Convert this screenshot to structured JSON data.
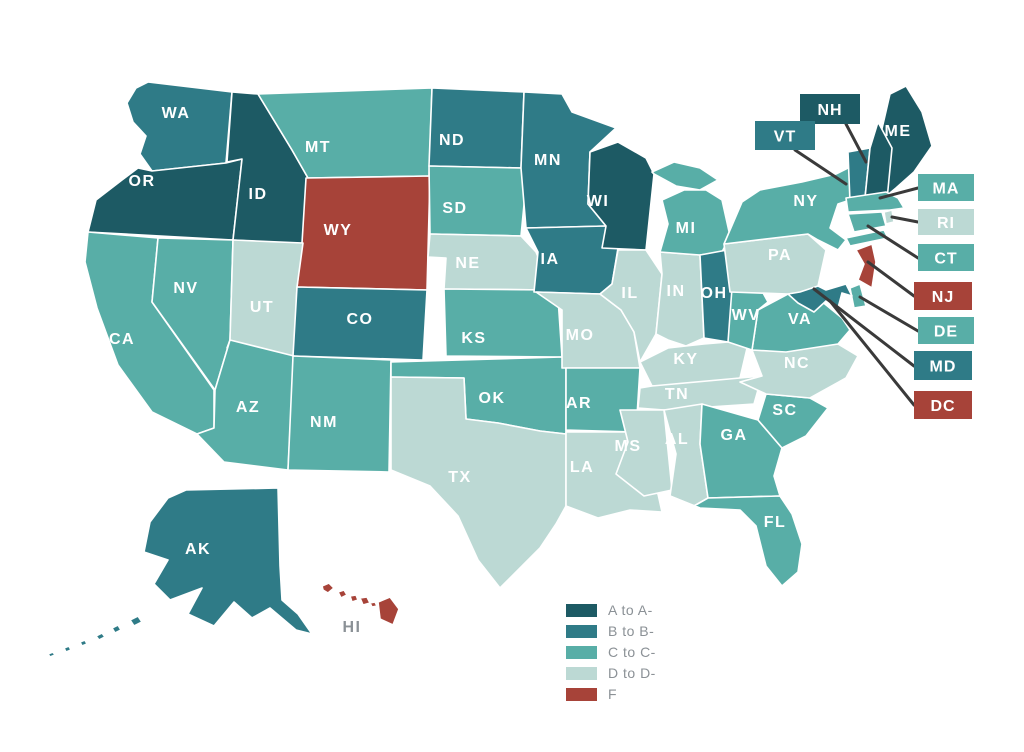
{
  "colors": {
    "A": "#1d5a64",
    "B": "#2f7b87",
    "C": "#58aea7",
    "D": "#bcd9d4",
    "F": "#a74339",
    "leader_line": "#3a3a3a",
    "state_label": "#ffffff",
    "outside_label": "#8b9196"
  },
  "legend": {
    "items": [
      {
        "grade": "A",
        "label": "A to A-"
      },
      {
        "grade": "B",
        "label": "B to B-"
      },
      {
        "grade": "C",
        "label": "C to C-"
      },
      {
        "grade": "D",
        "label": "D to D-"
      },
      {
        "grade": "F",
        "label": "F"
      }
    ]
  },
  "map": {
    "states": [
      {
        "abbr": "WA",
        "label": "WA",
        "grade": "B"
      },
      {
        "abbr": "OR",
        "label": "OR",
        "grade": "A"
      },
      {
        "abbr": "CA",
        "label": "CA",
        "grade": "C"
      },
      {
        "abbr": "NV",
        "label": "NV",
        "grade": "C"
      },
      {
        "abbr": "ID",
        "label": "ID",
        "grade": "A"
      },
      {
        "abbr": "MT",
        "label": "MT",
        "grade": "C"
      },
      {
        "abbr": "WY",
        "label": "WY",
        "grade": "F"
      },
      {
        "abbr": "UT",
        "label": "UT",
        "grade": "D"
      },
      {
        "abbr": "CO",
        "label": "CO",
        "grade": "B"
      },
      {
        "abbr": "AZ",
        "label": "AZ",
        "grade": "C"
      },
      {
        "abbr": "NM",
        "label": "NM",
        "grade": "C"
      },
      {
        "abbr": "ND",
        "label": "ND",
        "grade": "B"
      },
      {
        "abbr": "SD",
        "label": "SD",
        "grade": "C"
      },
      {
        "abbr": "NE",
        "label": "NE",
        "grade": "D"
      },
      {
        "abbr": "KS",
        "label": "KS",
        "grade": "C"
      },
      {
        "abbr": "OK",
        "label": "OK",
        "grade": "C"
      },
      {
        "abbr": "TX",
        "label": "TX",
        "grade": "D"
      },
      {
        "abbr": "MN",
        "label": "MN",
        "grade": "B"
      },
      {
        "abbr": "IA",
        "label": "IA",
        "grade": "B"
      },
      {
        "abbr": "MO",
        "label": "MO",
        "grade": "D"
      },
      {
        "abbr": "AR",
        "label": "AR",
        "grade": "C"
      },
      {
        "abbr": "LA",
        "label": "LA",
        "grade": "D"
      },
      {
        "abbr": "WI",
        "label": "WI",
        "grade": "A"
      },
      {
        "abbr": "IL",
        "label": "IL",
        "grade": "D"
      },
      {
        "abbr": "IN",
        "label": "IN",
        "grade": "D"
      },
      {
        "abbr": "MI",
        "label": "MI",
        "grade": "C"
      },
      {
        "abbr": "OH",
        "label": "OH",
        "grade": "B"
      },
      {
        "abbr": "KY",
        "label": "KY",
        "grade": "D"
      },
      {
        "abbr": "TN",
        "label": "TN",
        "grade": "D"
      },
      {
        "abbr": "MS",
        "label": "MS",
        "grade": "D"
      },
      {
        "abbr": "AL",
        "label": "AL",
        "grade": "D"
      },
      {
        "abbr": "GA",
        "label": "GA",
        "grade": "C"
      },
      {
        "abbr": "FL",
        "label": "FL",
        "grade": "C"
      },
      {
        "abbr": "SC",
        "label": "SC",
        "grade": "C"
      },
      {
        "abbr": "NC",
        "label": "NC",
        "grade": "D"
      },
      {
        "abbr": "VA",
        "label": "VA",
        "grade": "C"
      },
      {
        "abbr": "WV",
        "label": "WV",
        "grade": "C"
      },
      {
        "abbr": "PA",
        "label": "PA",
        "grade": "D"
      },
      {
        "abbr": "NY",
        "label": "NY",
        "grade": "C"
      },
      {
        "abbr": "ME",
        "label": "ME",
        "grade": "A"
      },
      {
        "abbr": "VT",
        "label": "VT",
        "grade": "B",
        "show_label": false
      },
      {
        "abbr": "NH",
        "label": "NH",
        "grade": "A",
        "show_label": false
      },
      {
        "abbr": "MA",
        "label": "MA",
        "grade": "C",
        "show_label": false
      },
      {
        "abbr": "RI",
        "label": "RI",
        "grade": "D",
        "show_label": false
      },
      {
        "abbr": "CT",
        "label": "CT",
        "grade": "C",
        "show_label": false
      },
      {
        "abbr": "NJ",
        "label": "NJ",
        "grade": "F",
        "show_label": false
      },
      {
        "abbr": "DE",
        "label": "DE",
        "grade": "C",
        "show_label": false
      },
      {
        "abbr": "MD",
        "label": "MD",
        "grade": "B",
        "show_label": false
      },
      {
        "abbr": "AK",
        "label": "AK",
        "grade": "B"
      },
      {
        "abbr": "HI",
        "label": "HI",
        "grade": "F",
        "label_outside": true
      }
    ],
    "callouts": [
      {
        "abbr": "NH",
        "label": "NH",
        "grade": "A"
      },
      {
        "abbr": "VT",
        "label": "VT",
        "grade": "B"
      },
      {
        "abbr": "MA",
        "label": "MA",
        "grade": "C"
      },
      {
        "abbr": "RI",
        "label": "RI",
        "grade": "D"
      },
      {
        "abbr": "CT",
        "label": "CT",
        "grade": "C"
      },
      {
        "abbr": "NJ",
        "label": "NJ",
        "grade": "F"
      },
      {
        "abbr": "DE",
        "label": "DE",
        "grade": "C"
      },
      {
        "abbr": "MD",
        "label": "MD",
        "grade": "B"
      },
      {
        "abbr": "DC",
        "label": "DC",
        "grade": "F"
      }
    ]
  }
}
